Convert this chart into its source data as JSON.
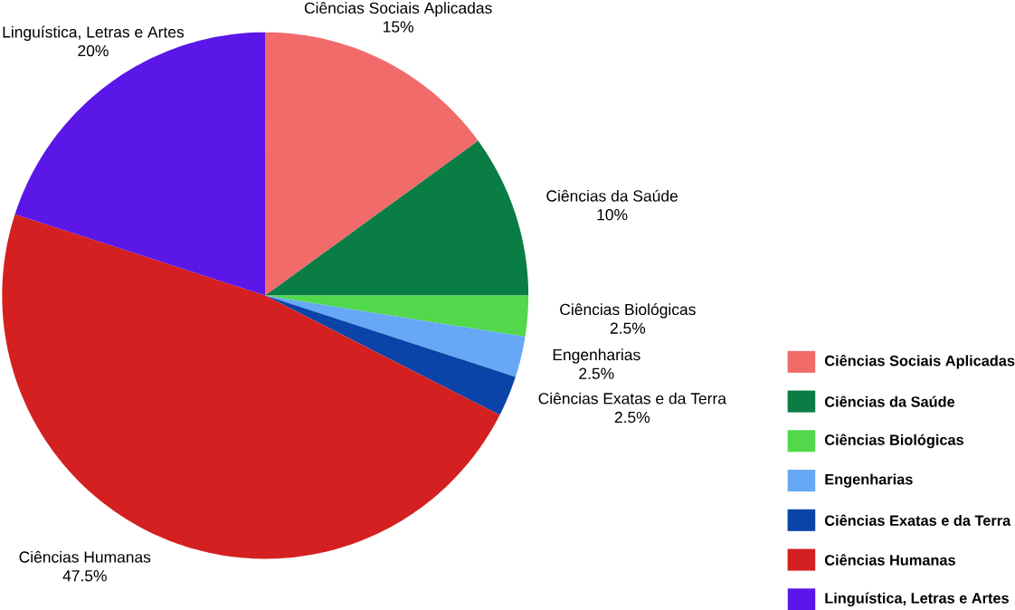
{
  "chart_data": {
    "type": "pie",
    "categories": [
      "Ciências Sociais Aplicadas",
      "Ciências da Saúde",
      "Ciências Biológicas",
      "Engenharias",
      "Ciências Exatas e da Terra",
      "Ciências Humanas",
      "Linguística, Letras e Artes"
    ],
    "values": [
      15,
      10,
      2.5,
      2.5,
      2.5,
      47.5,
      20
    ],
    "colors": [
      "#f26b6b",
      "#0a7d45",
      "#52d84a",
      "#66a8f5",
      "#0a44a8",
      "#d42020",
      "#5b16e8"
    ],
    "value_labels": [
      "15%",
      "10%",
      "2.5%",
      "2.5%",
      "2.5%",
      "47.5%",
      "20%"
    ],
    "legend": "bottom right"
  }
}
